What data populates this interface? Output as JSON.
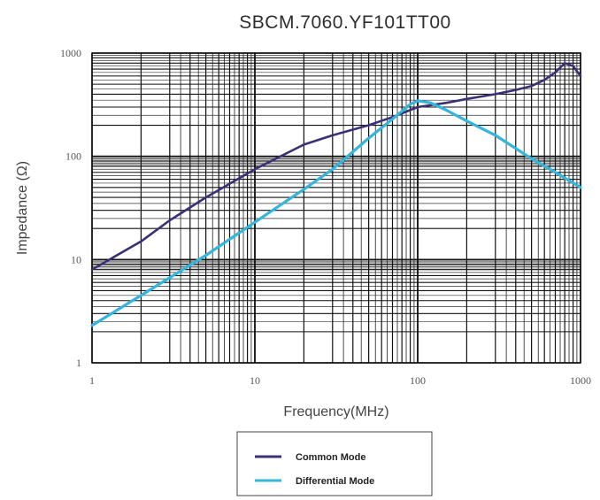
{
  "chart_data": {
    "type": "line",
    "title": "SBCM.7060.YF101TT00",
    "xlabel": "Frequency(MHz)",
    "ylabel": "Impedance (Ω)",
    "x_scale": "log",
    "y_scale": "log",
    "xlim": [
      1,
      1000
    ],
    "ylim": [
      1,
      1000
    ],
    "x_ticks": [
      "1",
      "10",
      "100",
      "1000"
    ],
    "y_ticks": [
      "1",
      "10",
      "100",
      "1000"
    ],
    "grid": true,
    "legend_position": "bottom-center",
    "series": [
      {
        "name": "Common Mode",
        "color": "#3b3075",
        "x": [
          1,
          2,
          3,
          5,
          10,
          20,
          30,
          50,
          70,
          100,
          150,
          200,
          300,
          400,
          500,
          600,
          700,
          800,
          900,
          1000
        ],
        "y": [
          8,
          15,
          24,
          40,
          75,
          130,
          160,
          200,
          240,
          300,
          330,
          360,
          400,
          440,
          480,
          550,
          650,
          800,
          750,
          600
        ]
      },
      {
        "name": "Differential Mode",
        "color": "#33b5dc",
        "x": [
          1,
          2,
          5,
          10,
          20,
          30,
          50,
          70,
          90,
          100,
          120,
          150,
          200,
          300,
          500,
          700,
          1000
        ],
        "y": [
          2.3,
          4.5,
          11,
          23,
          48,
          75,
          150,
          230,
          320,
          345,
          330,
          280,
          220,
          160,
          95,
          70,
          50
        ]
      }
    ]
  }
}
